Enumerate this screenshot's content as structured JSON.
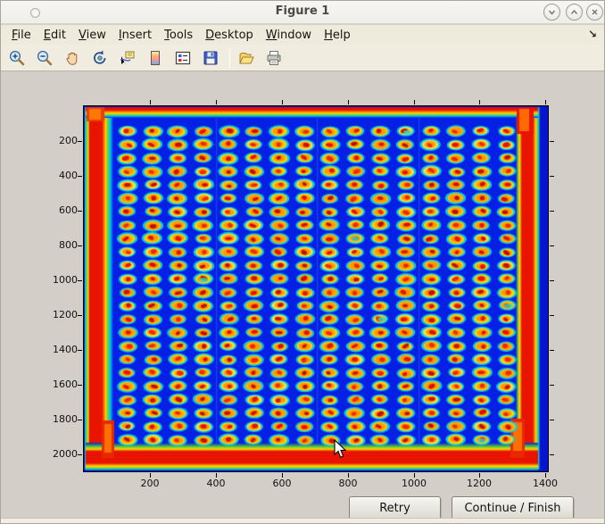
{
  "window": {
    "title": "Figure 1",
    "controls": [
      {
        "name": "minimize-button",
        "icon": "chevron-down-icon"
      },
      {
        "name": "maximize-button",
        "icon": "chevron-up-icon"
      },
      {
        "name": "close-button",
        "icon": "close-icon"
      }
    ]
  },
  "menu": {
    "items": [
      {
        "label": "File",
        "underline": 0
      },
      {
        "label": "Edit",
        "underline": 0
      },
      {
        "label": "View",
        "underline": 0
      },
      {
        "label": "Insert",
        "underline": 0
      },
      {
        "label": "Tools",
        "underline": 0
      },
      {
        "label": "Desktop",
        "underline": 0
      },
      {
        "label": "Window",
        "underline": 0
      },
      {
        "label": "Help",
        "underline": 0
      }
    ],
    "dock_arrow": "↘"
  },
  "toolbar": {
    "icons": [
      "zoom-in",
      "zoom-out",
      "pan-hand",
      "rotate-3d",
      "data-cursor",
      "colorbar",
      "legend",
      "save",
      "separator",
      "open-folder",
      "print"
    ]
  },
  "figure": {
    "buttons": [
      {
        "label": "Retry"
      },
      {
        "label": "Continue / Finish"
      }
    ]
  },
  "chart_data": {
    "type": "heatmap",
    "title": "",
    "xlabel": "",
    "ylabel": "",
    "x_ticks": [
      200,
      400,
      600,
      800,
      1000,
      1200,
      1400
    ],
    "y_ticks": [
      200,
      400,
      600,
      800,
      1000,
      1200,
      1400,
      1600,
      1800,
      2000
    ],
    "x_range": [
      0,
      1407
    ],
    "y_range": [
      0,
      2095
    ],
    "colormap": "jet",
    "grid_lines": false,
    "description": "Jet-colormap intensity image of a 384-well microplate scan: 16 columns x 24 rows of spots (cyan halo, yellow/orange ring, red core) on a blue field with red plate edges",
    "spot_grid": {
      "cols": 16,
      "rows": 24,
      "x_start": 132,
      "y_start": 144,
      "pitch_x": 76.7,
      "pitch_y": 77
    },
    "colors": {
      "background": "#0714cf",
      "plate": "#0420e4",
      "halo": "#00d2f0",
      "ring": "#ffd800",
      "ring_inner": "#ff9400",
      "core": "#e61400",
      "edge_red": "#e81400"
    }
  }
}
